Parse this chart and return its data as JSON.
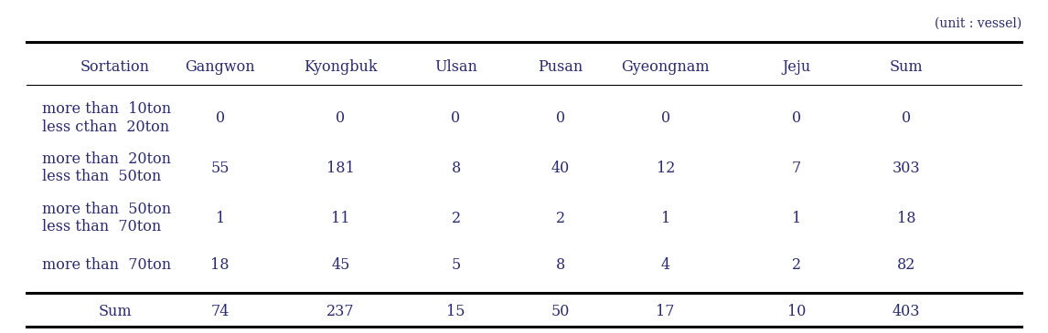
{
  "unit_label": "(unit : vessel)",
  "columns": [
    "Sortation",
    "Gangwon",
    "Kyongbuk",
    "Ulsan",
    "Pusan",
    "Gyeongnam",
    "Jeju",
    "Sum"
  ],
  "rows": [
    {
      "label_line1": "more than  10ton",
      "label_line2": "less cthan  20ton",
      "values": [
        "0",
        "0",
        "0",
        "0",
        "0",
        "0",
        "0"
      ]
    },
    {
      "label_line1": "more than  20ton",
      "label_line2": "less than  50ton",
      "values": [
        "55",
        "181",
        "8",
        "40",
        "12",
        "7",
        "303"
      ]
    },
    {
      "label_line1": "more than  50ton",
      "label_line2": "less than  70ton",
      "values": [
        "1",
        "11",
        "2",
        "2",
        "1",
        "1",
        "18"
      ]
    },
    {
      "label_line1": "more than  70ton",
      "label_line2": "",
      "values": [
        "18",
        "45",
        "5",
        "8",
        "4",
        "2",
        "82"
      ]
    }
  ],
  "sum_row": {
    "label": "Sum",
    "values": [
      "74",
      "237",
      "15",
      "50",
      "17",
      "10",
      "403"
    ]
  },
  "text_color": "#2a2a6e",
  "background_color": "#ffffff",
  "font_size": 11.5,
  "font_family": "DejaVu Serif"
}
